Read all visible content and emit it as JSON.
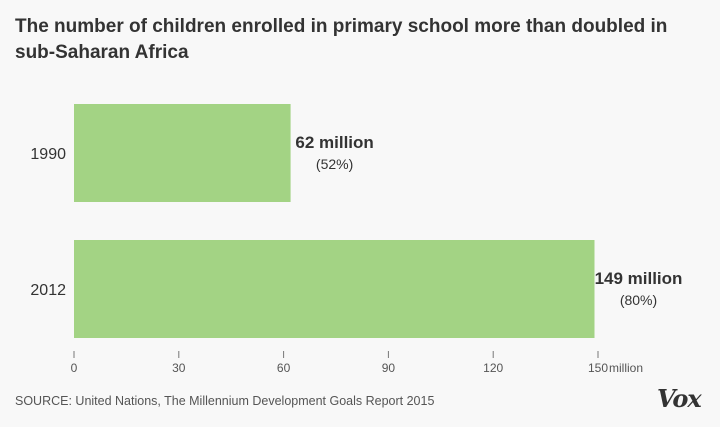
{
  "chart_data": {
    "type": "bar",
    "orientation": "horizontal",
    "title": "The number of children enrolled in primary school more than doubled in sub-Saharan Africa",
    "categories": [
      "1990",
      "2012"
    ],
    "values": [
      62,
      149
    ],
    "value_labels": [
      "62 million",
      "149 million"
    ],
    "sub_labels": [
      "(52%)",
      "(80%)"
    ],
    "xlim": [
      0,
      150
    ],
    "xticks": [
      "0",
      "30",
      "60",
      "90",
      "120",
      "150"
    ],
    "xtick_values": [
      0,
      30,
      60,
      90,
      120,
      150
    ],
    "xunit": "million",
    "bar_color": "#a3d384",
    "grid": false
  },
  "source": "SOURCE: United Nations, The Millennium Development Goals Report 2015",
  "logo": "Vox"
}
